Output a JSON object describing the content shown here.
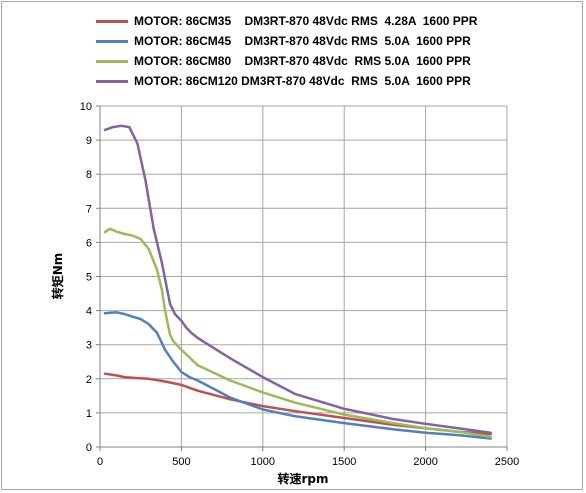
{
  "chart_data": {
    "type": "line",
    "xlabel": "转速rpm",
    "ylabel": "转矩Nm",
    "xlim": [
      0,
      2500
    ],
    "ylim": [
      0,
      10
    ],
    "x_ticks": [
      "0",
      "500",
      "1000",
      "1500",
      "2000",
      "2500"
    ],
    "y_ticks": [
      "0",
      "1",
      "2",
      "3",
      "4",
      "5",
      "6",
      "7",
      "8",
      "9",
      "10"
    ],
    "grid": true,
    "legend_position": "top",
    "series": [
      {
        "name": "MOTOR: 86CM35    DM3RT-870 48Vdc RMS  4.28A  1600 PPR",
        "color": "#c0504d",
        "x": [
          30,
          100,
          150,
          200,
          300,
          400,
          500,
          600,
          800,
          1000,
          1200,
          1500,
          1800,
          2000,
          2200,
          2400
        ],
        "y": [
          2.15,
          2.1,
          2.05,
          2.03,
          2.0,
          1.92,
          1.82,
          1.65,
          1.4,
          1.2,
          1.05,
          0.85,
          0.65,
          0.55,
          0.45,
          0.38
        ]
      },
      {
        "name": "MOTOR: 86CM45    DM3RT-870 48Vdc RMS  5.0A  1600 PPR",
        "color": "#4f81bd",
        "x": [
          30,
          100,
          150,
          200,
          250,
          300,
          350,
          400,
          450,
          500,
          550,
          600,
          700,
          800,
          1000,
          1200,
          1500,
          1800,
          2000,
          2200,
          2400
        ],
        "y": [
          3.92,
          3.95,
          3.9,
          3.82,
          3.75,
          3.6,
          3.35,
          2.85,
          2.5,
          2.2,
          2.05,
          1.95,
          1.7,
          1.45,
          1.1,
          0.9,
          0.7,
          0.52,
          0.42,
          0.35,
          0.25
        ]
      },
      {
        "name": "MOTOR: 86CM80    DM3RT-870 48Vdc  RMS 5.0A  1600 PPR",
        "color": "#9bbb59",
        "x": [
          30,
          60,
          100,
          150,
          200,
          250,
          300,
          350,
          380,
          400,
          430,
          450,
          500,
          600,
          800,
          1000,
          1200,
          1500,
          1800,
          2000,
          2200,
          2400
        ],
        "y": [
          6.3,
          6.4,
          6.32,
          6.25,
          6.2,
          6.1,
          5.8,
          5.2,
          4.6,
          4.0,
          3.3,
          3.1,
          2.85,
          2.4,
          1.95,
          1.6,
          1.3,
          0.95,
          0.7,
          0.55,
          0.45,
          0.3
        ]
      },
      {
        "name": "MOTOR: 86CM120 DM3RT-870 48Vdc  RMS  5.0A  1600 PPR",
        "color": "#8064a2",
        "x": [
          30,
          80,
          130,
          180,
          230,
          280,
          330,
          380,
          430,
          460,
          480,
          500,
          530,
          560,
          600,
          800,
          1000,
          1200,
          1500,
          1800,
          2000,
          2200,
          2400
        ],
        "y": [
          9.3,
          9.38,
          9.42,
          9.38,
          8.9,
          7.8,
          6.4,
          5.4,
          4.2,
          3.9,
          3.8,
          3.7,
          3.5,
          3.35,
          3.2,
          2.6,
          2.05,
          1.55,
          1.12,
          0.82,
          0.68,
          0.55,
          0.42
        ]
      }
    ]
  }
}
